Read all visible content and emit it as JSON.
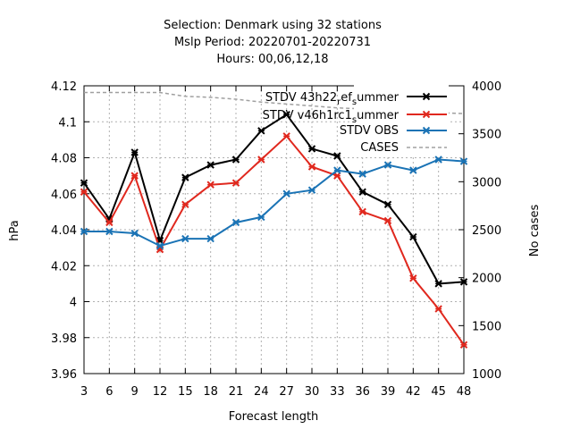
{
  "chart_data": {
    "type": "line",
    "title_lines": [
      "Selection: Denmark using    32 stations",
      "Mslp   Period: 20220701-20220731",
      "Hours:  00,06,12,18"
    ],
    "xlabel": "Forecast length",
    "ylabel": "hPa",
    "y2label": "No cases",
    "x": [
      3,
      6,
      9,
      12,
      15,
      18,
      21,
      24,
      27,
      30,
      33,
      36,
      39,
      42,
      45,
      48
    ],
    "xlim": [
      3,
      48
    ],
    "ylim": [
      3.96,
      4.12
    ],
    "y2lim": [
      1000,
      4000
    ],
    "yticks": [
      "3.96",
      "3.98",
      "4",
      "4.02",
      "4.04",
      "4.06",
      "4.08",
      "4.1",
      "4.12"
    ],
    "y2ticks": [
      "1000",
      "1500",
      "2000",
      "2500",
      "3000",
      "3500",
      "4000"
    ],
    "grid": true,
    "legend_position": "top-right",
    "series": [
      {
        "name": "STDV 43h22",
        "name_sub": "r",
        "name_mid": "ef",
        "name_sub2": "s",
        "name_end": "ummer",
        "axis": "y",
        "color": "#000000",
        "marker": "x",
        "values": [
          4.066,
          4.046,
          4.083,
          4.034,
          4.069,
          4.076,
          4.079,
          4.095,
          4.104,
          4.085,
          4.081,
          4.061,
          4.054,
          4.036,
          4.01,
          4.011
        ]
      },
      {
        "name": "STDV v46h1rc1",
        "name_sub": "s",
        "name_end": "ummer",
        "axis": "y",
        "color": "#e0281e",
        "marker": "x",
        "values": [
          4.061,
          4.044,
          4.07,
          4.029,
          4.054,
          4.065,
          4.066,
          4.079,
          4.092,
          4.075,
          4.07,
          4.05,
          4.045,
          4.013,
          3.996,
          3.976
        ]
      },
      {
        "name": "STDV OBS",
        "axis": "y",
        "color": "#1a73b5",
        "marker": "x",
        "values": [
          4.039,
          4.039,
          4.038,
          4.031,
          4.035,
          4.035,
          4.044,
          4.047,
          4.06,
          4.062,
          4.073,
          4.071,
          4.076,
          4.073,
          4.079,
          4.078
        ]
      },
      {
        "name": "CASES",
        "axis": "y2",
        "color": "#a0a0a0",
        "dashed": true,
        "values": [
          3930,
          3930,
          3930,
          3930,
          3890,
          3880,
          3860,
          3830,
          3810,
          3790,
          3770,
          3760,
          3750,
          3740,
          3720,
          3710
        ]
      }
    ]
  }
}
